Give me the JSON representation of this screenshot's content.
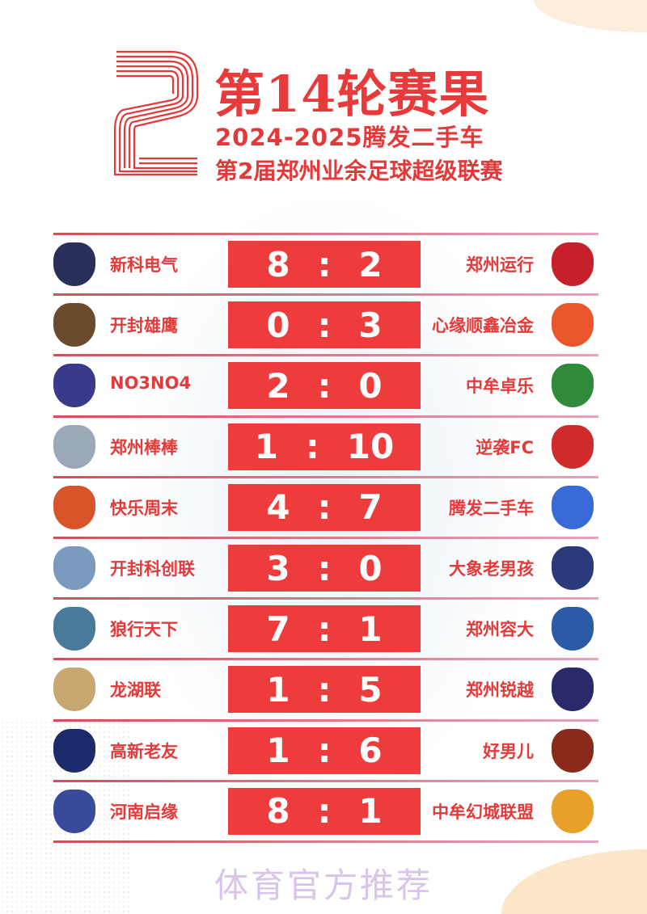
{
  "header": {
    "title": "第14轮赛果",
    "subtitle_1": "2024-2025腾发二手车",
    "subtitle_2": "第2届郑州业余足球超级联赛"
  },
  "colors": {
    "accent": "#ee3b3b",
    "text_red": "#e43a3a",
    "footer": "#d9c4ea"
  },
  "matches": [
    {
      "home": "新科电气",
      "home_score": "8",
      "away_score": "2",
      "away": "郑州运行",
      "home_logo": "SINCO",
      "away_logo": "YUANXING",
      "home_color": "#2a2f5a",
      "away_color": "#c8202a"
    },
    {
      "home": "开封雄鹰",
      "home_score": "0",
      "away_score": "3",
      "away": "心缘顺鑫冶金",
      "home_logo": "Kaifeng Tercel",
      "away_logo": "",
      "home_color": "#6b4a2e",
      "away_color": "#e8562a"
    },
    {
      "home": "NO3NO4",
      "home_score": "2",
      "away_score": "0",
      "away": "中牟卓乐",
      "home_logo": "No3 No4",
      "away_logo": "ZHUOLE",
      "home_color": "#3a3a8a",
      "away_color": "#2f8a3a"
    },
    {
      "home": "郑州棒棒",
      "home_score": "1",
      "away_score": "10",
      "away": "逆袭FC",
      "home_logo": "Since 2021",
      "away_logo": "逆袭·FC",
      "home_color": "#9aa8b8",
      "away_color": "#d02a2a"
    },
    {
      "home": "快乐周末",
      "home_score": "4",
      "away_score": "7",
      "away": "腾发二手车",
      "home_logo": "",
      "away_logo": "腾发二手车",
      "home_color": "#d8552a",
      "away_color": "#3a6ad8"
    },
    {
      "home": "开封科创联",
      "home_score": "3",
      "away_score": "0",
      "away": "大象老男孩",
      "home_logo": "",
      "away_logo": "",
      "home_color": "#7a9ac0",
      "away_color": "#2a3a7a"
    },
    {
      "home": "狼行天下",
      "home_score": "7",
      "away_score": "1",
      "away": "郑州容大",
      "home_logo": "狼行天下",
      "away_logo": "",
      "home_color": "#4a7a9a",
      "away_color": "#2a5aa8"
    },
    {
      "home": "龙湖联",
      "home_score": "1",
      "away_score": "5",
      "away": "郑州锐越",
      "home_logo": "",
      "away_logo": "",
      "home_color": "#c8a870",
      "away_color": "#2a2a6a"
    },
    {
      "home": "高新老友",
      "home_score": "1",
      "away_score": "6",
      "away": "好男儿",
      "home_logo": "THE OLD FRIENDS",
      "away_logo": "好男儿",
      "home_color": "#1a2a6a",
      "away_color": "#8a2a1a"
    },
    {
      "home": "河南启缘",
      "home_score": "8",
      "away_score": "1",
      "away": "中牟幻城联盟",
      "home_logo": "河南启缘",
      "away_logo": "中牟",
      "home_color": "#3a4a9a",
      "away_color": "#e8a02a"
    }
  ],
  "footer": {
    "text": "体育官方推荐"
  }
}
